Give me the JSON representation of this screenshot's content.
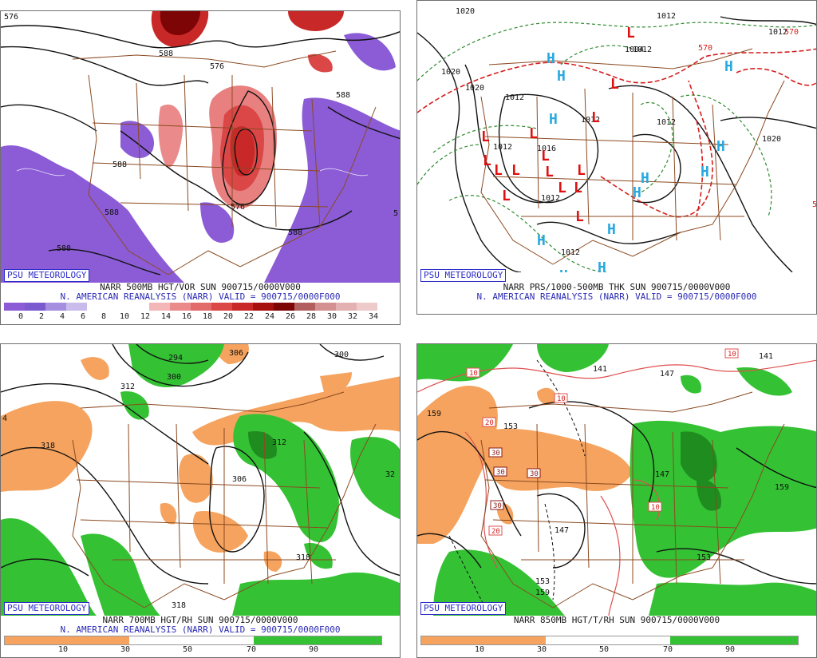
{
  "psu_label": "PSU METEOROLOGY",
  "panels": {
    "p1": {
      "title": "NARR 500MB HGT/VOR SUN 900715/0000V000",
      "subtitle": "N. AMERICAN REANALYSIS (NARR) VALID = 900715/0000F000",
      "ticks": [
        "0",
        "2",
        "4",
        "6",
        "8",
        "10",
        "12",
        "14",
        "16",
        "18",
        "20",
        "22",
        "24",
        "26",
        "28",
        "30",
        "32",
        "34"
      ],
      "labels": [
        "576",
        "588",
        "576",
        "588",
        "588",
        "576",
        "588",
        "588",
        "588",
        "5",
        "576"
      ],
      "colors": [
        "#8b5cd6",
        "#7b5ad0",
        "#a58de0",
        "#c9bcec",
        "#ffffff",
        "#ffffff",
        "#ffffff",
        "#f3b7b7",
        "#ea8a8a",
        "#e36a6a",
        "#db4747",
        "#c92828",
        "#a80f0f",
        "#7d0505",
        "#b35e5e",
        "#d49090",
        "#e3b1b1",
        "#efcaca"
      ]
    },
    "p2": {
      "title": "NARR PRS/1000-500MB THK SUN 900715/0000V000",
      "subtitle": "N. AMERICAN REANALYSIS (NARR) VALID = 900715/0000F000",
      "isobars": [
        "1020",
        "1012",
        "1012",
        "1004",
        "1020",
        "1020",
        "1012",
        "1012",
        "1012",
        "1012",
        "1016",
        "1020",
        "1012",
        "1012",
        "1012"
      ],
      "H": "H",
      "L": "L",
      "thk": [
        "570",
        "570",
        "5"
      ]
    },
    "p3": {
      "title": "NARR 700MB HGT/RH SUN 900715/0000V000",
      "subtitle": "N. AMERICAN REANALYSIS (NARR) VALID = 900715/0000F000",
      "ticks": [
        "10",
        "30",
        "50",
        "70",
        "90"
      ],
      "labels": [
        "294",
        "306",
        "300",
        "300",
        "312",
        "318",
        "312",
        "306",
        "318",
        "318",
        "32",
        "4"
      ]
    },
    "p4": {
      "title": "NARR 850MB HGT/T/RH SUN 900715/0000V000",
      "ticks": [
        "10",
        "30",
        "50",
        "70",
        "90"
      ],
      "labels": [
        "141",
        "141",
        "147",
        "159",
        "153",
        "147",
        "147",
        "159",
        "153",
        "159",
        "153"
      ],
      "temps": [
        "10",
        "10",
        "10",
        "20",
        "30",
        "30",
        "30",
        "30",
        "20",
        "10"
      ]
    }
  }
}
